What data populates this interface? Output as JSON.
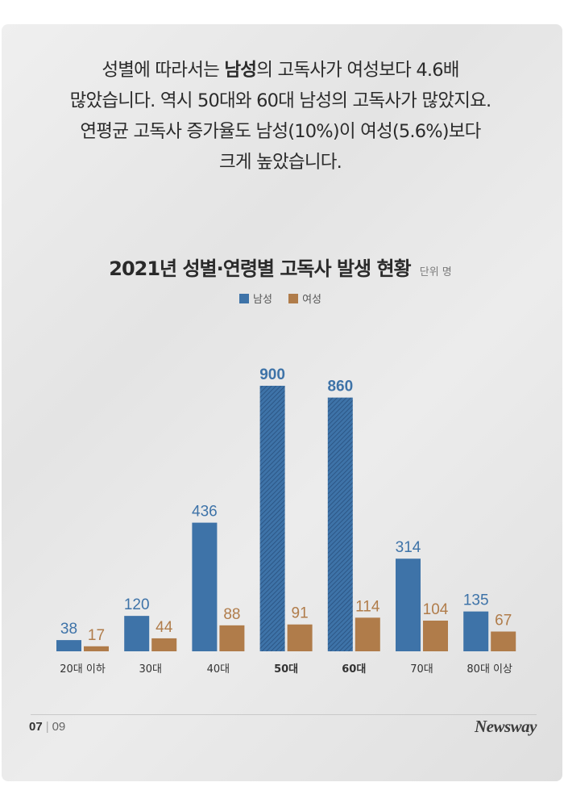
{
  "intro": {
    "line1_pre": "성별에 따라서는 ",
    "line1_bold": "남성",
    "line1_post": "의 고독사가 여성보다 4.6배",
    "line2": "많았습니다. 역시 50대와 60대 남성의 고독사가 많았지요.",
    "line3": "연평균 고독사 증가율도 남성(10%)이 여성(5.6%)보다",
    "line4": "크게 높았습니다."
  },
  "footer": {
    "page_current": "07",
    "page_separator": "|",
    "page_total": "09",
    "brand": "Newsway"
  },
  "colors": {
    "male": "#3e73a8",
    "male_hatched": "#2f5f96",
    "female": "#b07c4a"
  },
  "chart_data": {
    "type": "bar",
    "title": "2021년 성별·연령별 고독사 발생 현황",
    "unit": "단위 명",
    "categories": [
      "20대 이하",
      "30대",
      "40대",
      "50대",
      "60대",
      "70대",
      "80대 이상"
    ],
    "highlight_categories": [
      "50대",
      "60대"
    ],
    "series": [
      {
        "name": "남성",
        "values": [
          38,
          120,
          436,
          900,
          860,
          314,
          135
        ]
      },
      {
        "name": "여성",
        "values": [
          17,
          44,
          88,
          91,
          114,
          104,
          67
        ]
      }
    ],
    "ylim": [
      0,
      900
    ],
    "grid": false,
    "legend_position": "top-center"
  }
}
